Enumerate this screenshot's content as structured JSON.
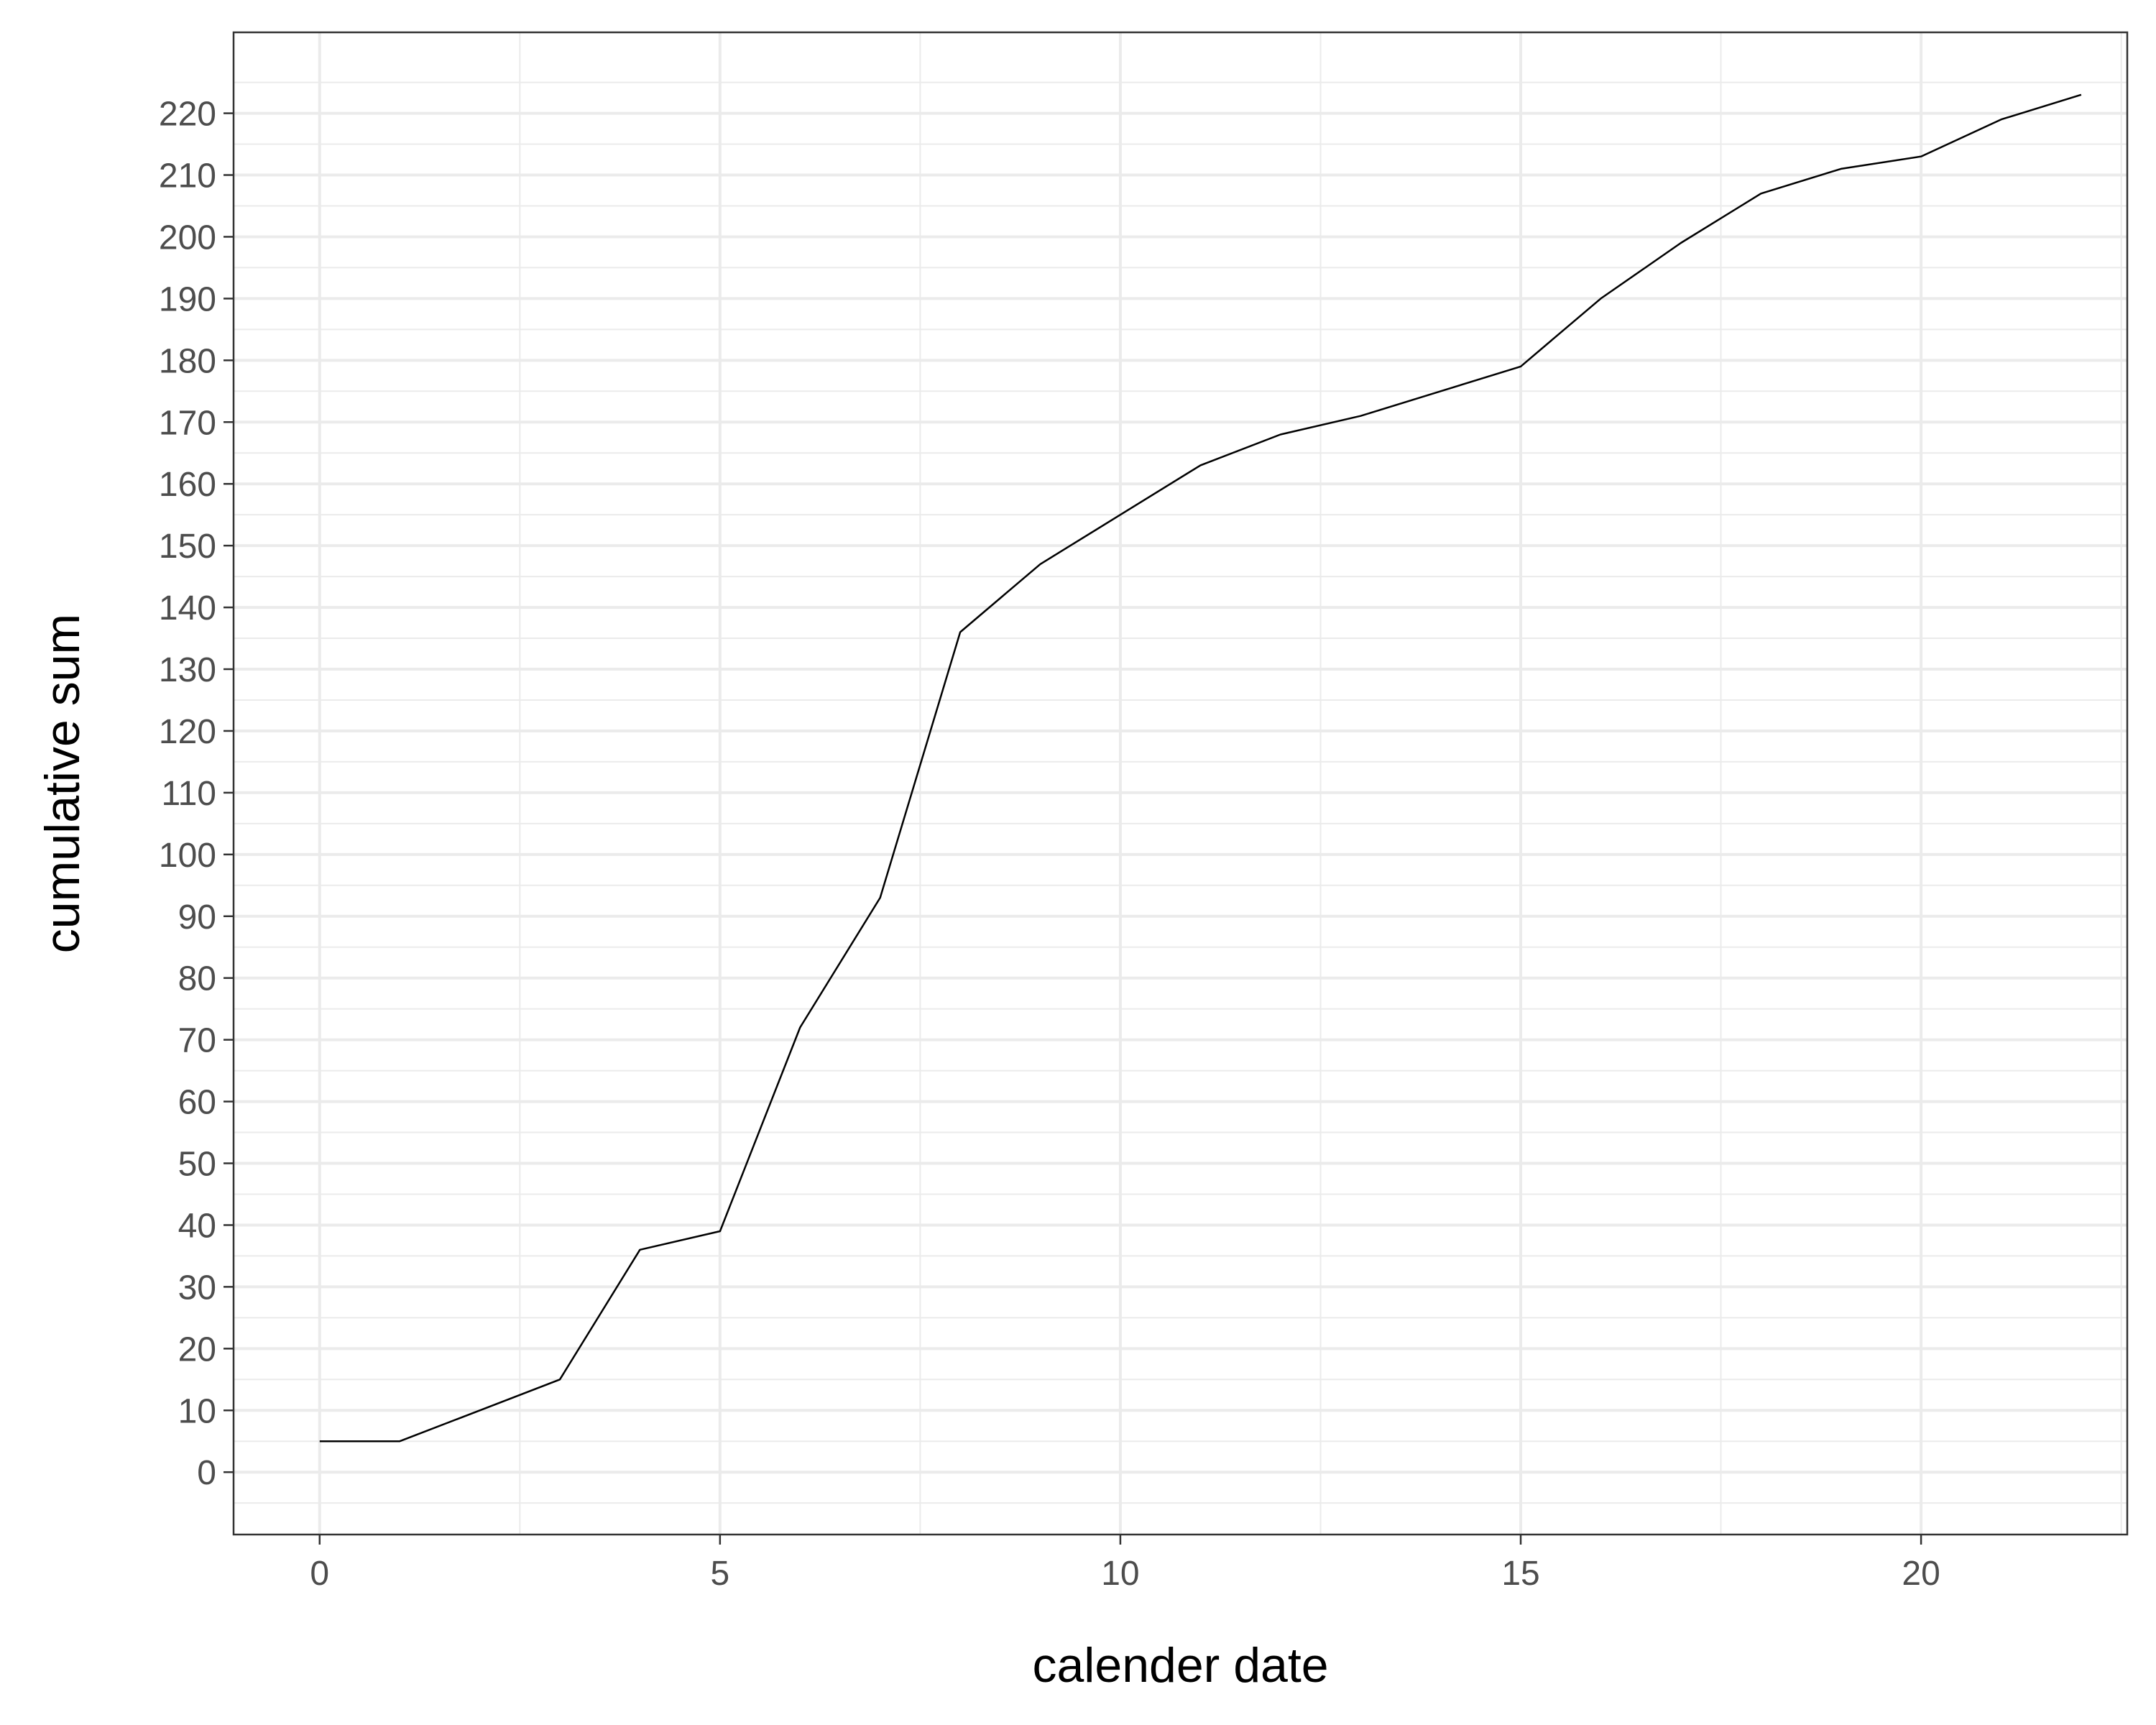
{
  "chart_data": {
    "type": "line",
    "title": "",
    "xlabel": "calender date",
    "ylabel": "cumulative sum",
    "xlim": [
      -1.075,
      22.575
    ],
    "ylim": [
      -10.1,
      233.1
    ],
    "xticks": [
      0,
      5,
      10,
      15,
      20
    ],
    "yticks": [
      0,
      10,
      20,
      30,
      40,
      50,
      60,
      70,
      80,
      90,
      100,
      110,
      120,
      130,
      140,
      150,
      160,
      170,
      180,
      190,
      200,
      210,
      220
    ],
    "grid": true,
    "legend": "none",
    "series": [
      {
        "x": [
          0,
          1,
          2,
          3,
          4,
          5,
          6,
          7,
          8,
          9,
          10,
          11,
          12,
          13,
          14,
          15,
          16,
          17,
          18,
          19,
          20,
          21,
          22
        ],
        "values": [
          5,
          5,
          10,
          15,
          36,
          39,
          72,
          93,
          136,
          147,
          155,
          163,
          168,
          171,
          175,
          179,
          190,
          199,
          207,
          211,
          213,
          219,
          223
        ],
        "color": "#000000"
      }
    ],
    "colors": {
      "panel_border": "#333333",
      "grid": "#ebebeb",
      "tick_text": "#4d4d4d",
      "line": "#000000"
    }
  }
}
